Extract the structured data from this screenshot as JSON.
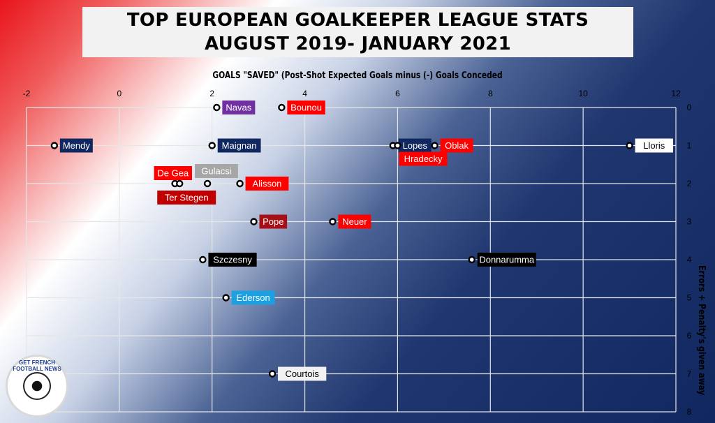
{
  "chart_data": {
    "type": "scatter",
    "title": "TOP EUROPEAN GOALKEEPER LEAGUE STATS AUGUST 2019- JANUARY 2021",
    "xlabel": "GOALS \"SAVED\" (Post-Shot Expected Goals minus (-) Goals Conceded",
    "ylabel": "Errors + Penalty's given away",
    "xlim": [
      -2,
      12
    ],
    "ylim": [
      0,
      8
    ],
    "y_inverted": true,
    "grid": true,
    "x_ticks": [
      "-2",
      "0",
      "2",
      "4",
      "6",
      "8",
      "10",
      "12"
    ],
    "y_ticks": [
      "0",
      "1",
      "2",
      "3",
      "4",
      "5",
      "6",
      "7",
      "8"
    ],
    "points": [
      {
        "label": "Navas",
        "x": 2.1,
        "y": 0,
        "color": "#7030a0"
      },
      {
        "label": "Bounou",
        "x": 3.5,
        "y": 0,
        "color": "#ff0000"
      },
      {
        "label": "Mendy",
        "x": -1.4,
        "y": 1,
        "color": "#10275f"
      },
      {
        "label": "Maignan",
        "x": 2.0,
        "y": 1,
        "color": "#10275f"
      },
      {
        "label": "Lopes",
        "x": 5.9,
        "y": 1,
        "color": "#10275f"
      },
      {
        "label": "Hradecky",
        "x": 6.0,
        "y": 1,
        "color": "#ff0000"
      },
      {
        "label": "Oblak",
        "x": 6.8,
        "y": 1,
        "color": "#ff0000"
      },
      {
        "label": "Lloris",
        "x": 11.0,
        "y": 1,
        "color": "#ffffff"
      },
      {
        "label": "De Gea",
        "x": 1.2,
        "y": 2,
        "color": "#ff0000"
      },
      {
        "label": "Ter Stegen",
        "x": 1.3,
        "y": 2,
        "color": "#c00000"
      },
      {
        "label": "Gulacsi",
        "x": 1.9,
        "y": 2,
        "color": "#a6a6a6"
      },
      {
        "label": "Alisson",
        "x": 2.6,
        "y": 2,
        "color": "#ff0000"
      },
      {
        "label": "Pope",
        "x": 2.9,
        "y": 3,
        "color": "#a50f15"
      },
      {
        "label": "Neuer",
        "x": 4.6,
        "y": 3,
        "color": "#ff0000"
      },
      {
        "label": "Szczesny",
        "x": 1.8,
        "y": 4,
        "color": "#000000"
      },
      {
        "label": "Donnarumma",
        "x": 7.6,
        "y": 4,
        "color": "#000000"
      },
      {
        "label": "Ederson",
        "x": 2.3,
        "y": 5,
        "color": "#1ba1e2"
      },
      {
        "label": "Courtois",
        "x": 3.3,
        "y": 7,
        "color": "#f2f2f2"
      }
    ]
  },
  "logo": {
    "text": "GET FRENCH FOOTBALL NEWS"
  }
}
